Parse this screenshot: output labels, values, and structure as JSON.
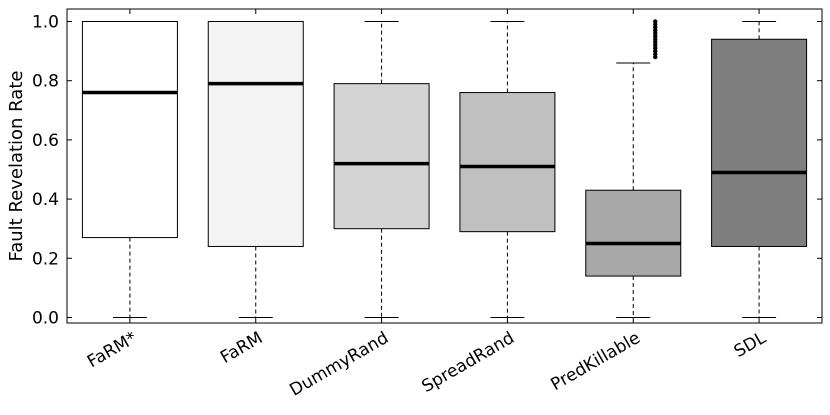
{
  "chart_data": {
    "type": "boxplot",
    "title": "",
    "xlabel": "",
    "ylabel": "Fault Revelation Rate",
    "ylim": [
      0,
      1
    ],
    "yticks": [
      0.0,
      0.2,
      0.4,
      0.6,
      0.8,
      1.0
    ],
    "ytick_labels": [
      "0.0",
      "0.2",
      "0.4",
      "0.6",
      "0.8",
      "1.0"
    ],
    "grid": false,
    "categories": [
      "FaRM*",
      "FaRM",
      "DummyRand",
      "SpreadRand",
      "PredKillable",
      "SDL"
    ],
    "boxes": [
      {
        "name": "FaRM*",
        "whisker_low": 0.0,
        "q1": 0.27,
        "median": 0.76,
        "q3": 1.0,
        "whisker_high": 1.0,
        "outliers": [],
        "fill": "#ffffff"
      },
      {
        "name": "FaRM",
        "whisker_low": 0.0,
        "q1": 0.24,
        "median": 0.79,
        "q3": 1.0,
        "whisker_high": 1.0,
        "outliers": [],
        "fill": "#f3f3f3"
      },
      {
        "name": "DummyRand",
        "whisker_low": 0.0,
        "q1": 0.3,
        "median": 0.52,
        "q3": 0.79,
        "whisker_high": 1.0,
        "outliers": [],
        "fill": "#d4d4d4"
      },
      {
        "name": "SpreadRand",
        "whisker_low": 0.0,
        "q1": 0.29,
        "median": 0.51,
        "q3": 0.76,
        "whisker_high": 1.0,
        "outliers": [],
        "fill": "#c0c0c0"
      },
      {
        "name": "PredKillable",
        "whisker_low": 0.0,
        "q1": 0.14,
        "median": 0.25,
        "q3": 0.43,
        "whisker_high": 0.86,
        "outliers": [
          0.88,
          0.89,
          0.9,
          0.91,
          0.92,
          0.93,
          0.94,
          0.95,
          0.96,
          0.97,
          0.98,
          0.99,
          1.0
        ],
        "fill": "#a8a8a8"
      },
      {
        "name": "SDL",
        "whisker_low": 0.0,
        "q1": 0.24,
        "median": 0.49,
        "q3": 0.94,
        "whisker_high": 1.0,
        "outliers": [],
        "fill": "#7f7f7f"
      }
    ]
  }
}
